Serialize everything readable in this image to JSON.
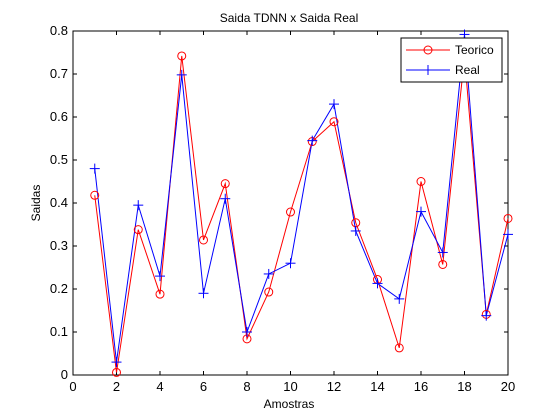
{
  "chart_data": {
    "type": "line",
    "title": "Saida TDNN x Saida Real",
    "xlabel": "Amostras",
    "ylabel": "Saidas",
    "xlim": [
      0,
      20
    ],
    "ylim": [
      0,
      0.8
    ],
    "x_ticks": [
      0,
      2,
      4,
      6,
      8,
      10,
      12,
      14,
      16,
      18,
      20
    ],
    "y_ticks": [
      0,
      0.1,
      0.2,
      0.3,
      0.4,
      0.5,
      0.6,
      0.7,
      0.8
    ],
    "x_tick_labels": [
      "0",
      "2",
      "4",
      "6",
      "8",
      "10",
      "12",
      "14",
      "16",
      "18",
      "20"
    ],
    "y_tick_labels": [
      "0",
      "0.1",
      "0.2",
      "0.3",
      "0.4",
      "0.5",
      "0.6",
      "0.7",
      "0.8"
    ],
    "grid": false,
    "legend_position": "top-right",
    "x": [
      1,
      2,
      3,
      4,
      5,
      6,
      7,
      8,
      9,
      10,
      11,
      12,
      13,
      14,
      15,
      16,
      17,
      18,
      19,
      20
    ],
    "series": [
      {
        "name": "Teorico",
        "color": "#ff0000",
        "marker": "circle",
        "values": [
          0.418,
          0.006,
          0.338,
          0.188,
          0.742,
          0.314,
          0.445,
          0.084,
          0.193,
          0.379,
          0.543,
          0.589,
          0.354,
          0.222,
          0.063,
          0.45,
          0.257,
          0.74,
          0.141,
          0.364
        ]
      },
      {
        "name": "Real",
        "color": "#0000ff",
        "marker": "plus",
        "values": [
          0.48,
          0.03,
          0.395,
          0.23,
          0.698,
          0.19,
          0.41,
          0.1,
          0.235,
          0.26,
          0.545,
          0.63,
          0.335,
          0.213,
          0.177,
          0.38,
          0.285,
          0.792,
          0.138,
          0.327
        ]
      }
    ]
  }
}
